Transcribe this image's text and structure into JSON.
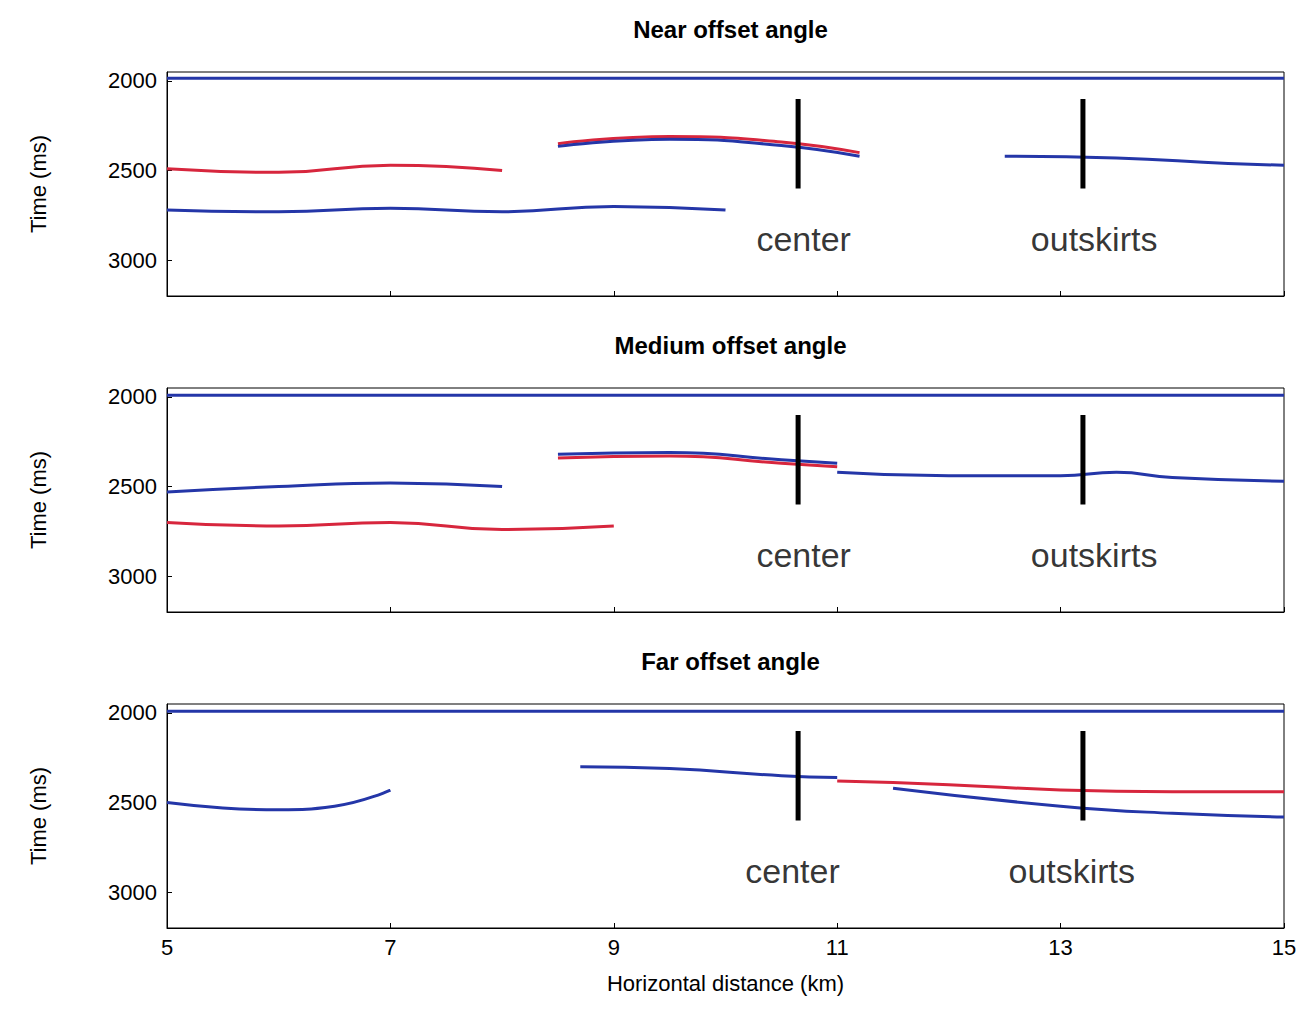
{
  "chart_data": [
    {
      "type": "line",
      "title": "Near offset angle",
      "ylabel": "Time (ms)",
      "xlim": [
        5,
        15
      ],
      "xticks": [
        5,
        7,
        9,
        11,
        13,
        15
      ],
      "ylim": [
        3200,
        1950
      ],
      "yticks": [
        2000,
        2500,
        3000
      ],
      "grid": false,
      "tick_labels": "y",
      "series": [
        {
          "color": "#2436a8",
          "x": [
            5,
            15
          ],
          "values": [
            1985,
            1985
          ]
        },
        {
          "color": "#d7263d",
          "x": [
            8.5,
            9.5,
            10.5,
            11.2
          ],
          "values": [
            2350,
            2310,
            2340,
            2400
          ]
        },
        {
          "color": "#2436a8",
          "x": [
            8.5,
            9.5,
            10.5,
            11.2
          ],
          "values": [
            2365,
            2325,
            2360,
            2420
          ]
        },
        {
          "color": "#d7263d",
          "x": [
            5,
            6,
            7,
            8
          ],
          "values": [
            2490,
            2510,
            2470,
            2500
          ]
        },
        {
          "color": "#2436a8",
          "x": [
            5,
            6,
            7,
            8,
            9,
            10
          ],
          "values": [
            2720,
            2730,
            2710,
            2730,
            2700,
            2720
          ]
        },
        {
          "color": "#2436a8",
          "x": [
            12.5,
            13.5,
            14.5,
            15
          ],
          "values": [
            2420,
            2430,
            2460,
            2470
          ]
        }
      ],
      "annotations": [
        {
          "text": "center",
          "x": 10.65,
          "line": [
            2100,
            2600
          ],
          "label_at": [
            10.7,
            2880
          ]
        },
        {
          "text": "outskirts",
          "x": 13.2,
          "line": [
            2100,
            2600
          ],
          "label_at": [
            13.3,
            2880
          ]
        }
      ]
    },
    {
      "type": "line",
      "title": "Medium offset angle",
      "ylabel": "Time (ms)",
      "xlim": [
        5,
        15
      ],
      "xticks": [
        5,
        7,
        9,
        11,
        13,
        15
      ],
      "ylim": [
        3200,
        1950
      ],
      "yticks": [
        2000,
        2500,
        3000
      ],
      "grid": false,
      "tick_labels": "y",
      "series": [
        {
          "color": "#2436a8",
          "x": [
            5,
            15
          ],
          "values": [
            1990,
            1990
          ]
        },
        {
          "color": "#2436a8",
          "x": [
            8.5,
            9.5,
            10.5,
            11
          ],
          "values": [
            2320,
            2310,
            2350,
            2370
          ]
        },
        {
          "color": "#d7263d",
          "x": [
            8.5,
            9.5,
            10.5,
            11
          ],
          "values": [
            2340,
            2330,
            2370,
            2390
          ]
        },
        {
          "color": "#2436a8",
          "x": [
            5,
            6,
            7,
            8
          ],
          "values": [
            2530,
            2500,
            2480,
            2500
          ]
        },
        {
          "color": "#2436a8",
          "x": [
            11,
            12,
            13,
            13.5,
            14,
            15
          ],
          "values": [
            2420,
            2440,
            2440,
            2420,
            2450,
            2470
          ]
        },
        {
          "color": "#d7263d",
          "x": [
            5,
            6,
            7,
            8,
            9
          ],
          "values": [
            2700,
            2720,
            2700,
            2740,
            2720
          ]
        }
      ],
      "annotations": [
        {
          "text": "center",
          "x": 10.65,
          "line": [
            2100,
            2600
          ],
          "label_at": [
            10.7,
            2880
          ]
        },
        {
          "text": "outskirts",
          "x": 13.2,
          "line": [
            2100,
            2600
          ],
          "label_at": [
            13.3,
            2880
          ]
        }
      ]
    },
    {
      "type": "line",
      "title": "Far offset angle",
      "ylabel": "Time (ms)",
      "xlabel": "Horizontal distance (km)",
      "xlim": [
        5,
        15
      ],
      "xticks": [
        5,
        7,
        9,
        11,
        13,
        15
      ],
      "ylim": [
        3200,
        1950
      ],
      "yticks": [
        2000,
        2500,
        3000
      ],
      "grid": false,
      "tick_labels": true,
      "series": [
        {
          "color": "#2436a8",
          "x": [
            5,
            15
          ],
          "values": [
            1990,
            1990
          ]
        },
        {
          "color": "#2436a8",
          "x": [
            5,
            5.5,
            6,
            6.5,
            7
          ],
          "values": [
            2500,
            2530,
            2540,
            2520,
            2430
          ]
        },
        {
          "color": "#2436a8",
          "x": [
            8.7,
            9.5,
            10.5,
            11
          ],
          "values": [
            2300,
            2310,
            2350,
            2360
          ]
        },
        {
          "color": "#d7263d",
          "x": [
            11,
            12,
            13,
            14,
            15
          ],
          "values": [
            2380,
            2400,
            2430,
            2440,
            2440
          ]
        },
        {
          "color": "#2436a8",
          "x": [
            11.5,
            13,
            14,
            15
          ],
          "values": [
            2420,
            2520,
            2560,
            2580
          ]
        }
      ],
      "annotations": [
        {
          "text": "center",
          "x": 10.65,
          "line": [
            2100,
            2600
          ],
          "label_at": [
            10.6,
            2880
          ]
        },
        {
          "text": "outskirts",
          "x": 13.2,
          "line": [
            2100,
            2600
          ],
          "label_at": [
            13.1,
            2880
          ]
        }
      ]
    }
  ]
}
